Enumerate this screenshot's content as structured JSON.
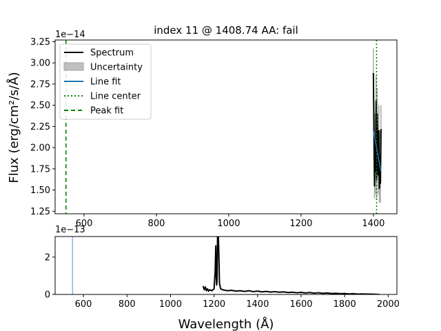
{
  "chart_data": [
    {
      "type": "line",
      "title": "index 11 @ 1408.74 AA: fail",
      "xlabel": "",
      "ylabel": "Flux (erg/cm²/s/Å)",
      "y_offset_label": "1e−14",
      "xlim": [
        520,
        1465
      ],
      "ylim": [
        1.22,
        3.27
      ],
      "x_ticks": [
        600,
        800,
        1000,
        1200,
        1400
      ],
      "x_tick_labels": [
        "600",
        "800",
        "1000",
        "1200",
        "1400"
      ],
      "y_ticks": [
        1.25,
        1.5,
        1.75,
        2.0,
        2.25,
        2.5,
        2.75,
        3.0,
        3.25
      ],
      "y_tick_labels": [
        "1.25",
        "1.50",
        "1.75",
        "2.00",
        "2.25",
        "2.50",
        "2.75",
        "3.00",
        "3.25"
      ],
      "legend": {
        "placement": "top-left",
        "entries": [
          {
            "label": "Spectrum",
            "style": "solid",
            "color": "#000000"
          },
          {
            "label": "Uncertainty",
            "style": "patch",
            "color": "#bfbfbf"
          },
          {
            "label": "Line fit",
            "style": "solid",
            "color": "#1f77b4"
          },
          {
            "label": "Line center",
            "style": "dotted",
            "color": "#008000"
          },
          {
            "label": "Peak fit",
            "style": "dashed",
            "color": "#008000"
          }
        ]
      },
      "series": [
        {
          "name": "Spectrum",
          "color": "#000000",
          "x": [
            1400,
            1401.5,
            1403,
            1404.5,
            1406,
            1407.5,
            1409,
            1410.5,
            1412,
            1413.5,
            1415,
            1416.5,
            1418,
            1419.5,
            1421
          ],
          "y": [
            2.88,
            2.2,
            1.55,
            2.1,
            1.72,
            2.55,
            1.62,
            2.4,
            1.95,
            1.68,
            2.2,
            1.52,
            1.9,
            1.58,
            2.22
          ]
        },
        {
          "name": "Uncertainty",
          "color": "#bfbfbf",
          "x": [
            1400,
            1401.5,
            1403,
            1404.5,
            1406,
            1407.5,
            1409,
            1410.5,
            1412,
            1413.5,
            1415,
            1416.5,
            1418,
            1419.5,
            1421
          ],
          "y_low": [
            2.58,
            1.85,
            1.4,
            1.8,
            1.45,
            2.2,
            1.38,
            2.05,
            1.65,
            1.45,
            1.85,
            1.35,
            1.6,
            1.35,
            1.9
          ],
          "y_high": [
            3.17,
            2.55,
            1.8,
            2.4,
            2.0,
            2.85,
            1.9,
            2.7,
            2.25,
            1.92,
            2.5,
            1.75,
            2.2,
            1.82,
            2.5
          ]
        },
        {
          "name": "Line fit",
          "color": "#1f77b4",
          "x": [
            1400,
            1421
          ],
          "y": [
            2.2,
            1.72
          ]
        }
      ],
      "vlines": [
        {
          "name": "Line center",
          "x": 1408.74,
          "style": "dotted",
          "color": "#008000"
        },
        {
          "name": "Peak fit",
          "x": 550,
          "style": "dashed",
          "color": "#008000"
        }
      ]
    },
    {
      "type": "line",
      "title": "",
      "xlabel": "Wavelength (Å)",
      "ylabel": "",
      "y_offset_label": "1e−13",
      "xlim": [
        470,
        2040
      ],
      "ylim": [
        0,
        3.1
      ],
      "x_ticks": [
        600,
        800,
        1000,
        1200,
        1400,
        1600,
        1800,
        2000
      ],
      "x_tick_labels": [
        "600",
        "800",
        "1000",
        "1200",
        "1400",
        "1600",
        "1800",
        "2000"
      ],
      "y_ticks": [
        0,
        2
      ],
      "y_tick_labels": [
        "0",
        "2"
      ],
      "series": [
        {
          "name": "Spectrum",
          "color": "#000000",
          "x": [
            1150,
            1155,
            1160,
            1165,
            1170,
            1175,
            1180,
            1190,
            1200,
            1205,
            1208,
            1210,
            1212,
            1214,
            1216,
            1218,
            1220,
            1222,
            1225,
            1230,
            1240,
            1260,
            1280,
            1300,
            1320,
            1340,
            1360,
            1380,
            1400,
            1420,
            1440,
            1460,
            1480,
            1500,
            1520,
            1540,
            1560,
            1580,
            1600,
            1620,
            1640,
            1660,
            1680,
            1700,
            1720,
            1740,
            1760,
            1780,
            1800,
            1820,
            1840,
            1860,
            1880,
            1900,
            1920,
            1940,
            1960
          ],
          "y": [
            0.45,
            0.25,
            0.4,
            0.2,
            0.3,
            0.18,
            0.25,
            0.2,
            0.3,
            1.2,
            2.6,
            1.0,
            0.5,
            0.8,
            3.1,
            3.1,
            3.1,
            2.2,
            0.6,
            0.3,
            0.25,
            0.2,
            0.22,
            0.18,
            0.2,
            0.16,
            0.2,
            0.15,
            0.18,
            0.14,
            0.16,
            0.13,
            0.15,
            0.12,
            0.14,
            0.1,
            0.12,
            0.09,
            0.11,
            0.08,
            0.1,
            0.07,
            0.09,
            0.06,
            0.08,
            0.05,
            0.06,
            0.04,
            0.05,
            0.03,
            0.04,
            0.02,
            0.03,
            0.02,
            0.02,
            0.01,
            0.0
          ]
        }
      ],
      "vlines": [
        {
          "name": "Peak fit marker",
          "x": 550,
          "style": "solid",
          "color": "#8fb4f0"
        }
      ]
    }
  ]
}
